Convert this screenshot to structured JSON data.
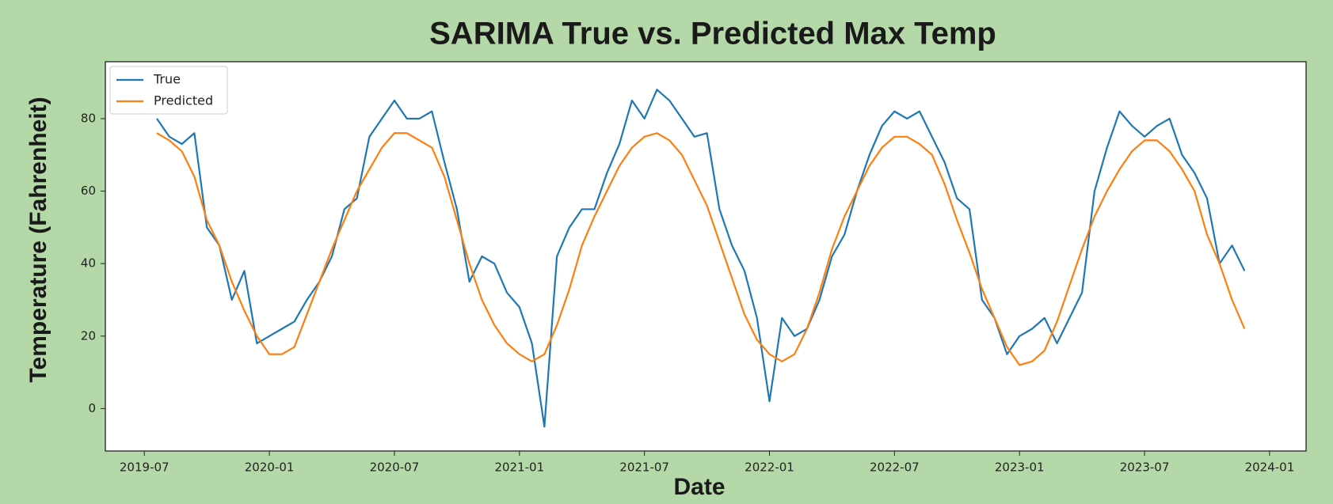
{
  "chart_data": {
    "type": "line",
    "title": "SARIMA True vs. Predicted Max Temp",
    "x_label": "Date",
    "y_label": "Temperature (Fahrenheit)",
    "x": [
      2019.55,
      2019.6,
      2019.65,
      2019.7,
      2019.75,
      2019.8,
      2019.85,
      2019.9,
      2019.95,
      2020.0,
      2020.05,
      2020.1,
      2020.15,
      2020.2,
      2020.25,
      2020.3,
      2020.35,
      2020.4,
      2020.45,
      2020.5,
      2020.55,
      2020.6,
      2020.65,
      2020.7,
      2020.75,
      2020.8,
      2020.85,
      2020.9,
      2020.95,
      2021.0,
      2021.05,
      2021.1,
      2021.15,
      2021.2,
      2021.25,
      2021.3,
      2021.35,
      2021.4,
      2021.45,
      2021.5,
      2021.55,
      2021.6,
      2021.65,
      2021.7,
      2021.75,
      2021.8,
      2021.85,
      2021.9,
      2021.95,
      2022.0,
      2022.05,
      2022.1,
      2022.15,
      2022.2,
      2022.25,
      2022.3,
      2022.35,
      2022.4,
      2022.45,
      2022.5,
      2022.55,
      2022.6,
      2022.65,
      2022.7,
      2022.75,
      2022.8,
      2022.85,
      2022.9,
      2022.95,
      2023.0,
      2023.05,
      2023.1,
      2023.15,
      2023.2,
      2023.25,
      2023.3,
      2023.35,
      2023.4,
      2023.45,
      2023.5,
      2023.55,
      2023.6,
      2023.65,
      2023.7,
      2023.75,
      2023.8,
      2023.85,
      2023.9
    ],
    "series": [
      {
        "name": "True",
        "color": "#1f77b4",
        "values": [
          80,
          75,
          73,
          76,
          50,
          45,
          30,
          38,
          18,
          20,
          22,
          24,
          30,
          35,
          42,
          55,
          58,
          75,
          80,
          85,
          80,
          80,
          82,
          68,
          55,
          35,
          42,
          40,
          32,
          28,
          18,
          -5,
          42,
          50,
          55,
          55,
          65,
          73,
          85,
          80,
          88,
          85,
          80,
          75,
          76,
          55,
          45,
          38,
          25,
          2,
          25,
          20,
          22,
          30,
          42,
          48,
          60,
          70,
          78,
          82,
          80,
          82,
          75,
          68,
          58,
          55,
          30,
          25,
          15,
          20,
          22,
          25,
          18,
          25,
          32,
          60,
          72,
          82,
          78,
          75,
          78,
          80,
          70,
          65,
          58,
          40,
          45,
          38
        ]
      },
      {
        "name": "Predicted",
        "color": "#ff7f0e",
        "values": [
          76,
          74,
          71,
          64,
          52,
          45,
          35,
          27,
          20,
          15,
          15,
          17,
          26,
          35,
          44,
          52,
          60,
          66,
          72,
          76,
          76,
          74,
          72,
          64,
          52,
          40,
          30,
          23,
          18,
          15,
          13,
          15,
          23,
          33,
          45,
          53,
          60,
          67,
          72,
          75,
          76,
          74,
          70,
          63,
          56,
          46,
          36,
          26,
          19,
          15,
          13,
          15,
          22,
          32,
          44,
          53,
          60,
          67,
          72,
          75,
          75,
          73,
          70,
          62,
          52,
          43,
          33,
          25,
          17,
          12,
          13,
          16,
          24,
          34,
          44,
          53,
          60,
          66,
          71,
          74,
          74,
          71,
          66,
          60,
          48,
          40,
          30,
          22
        ]
      }
    ],
    "xlim": [
      2019.344,
      2024.146
    ],
    "ylim": [
      -11.7,
      95.7
    ],
    "xticks": [
      {
        "value": 2019.5,
        "label": "2019-07"
      },
      {
        "value": 2020.0,
        "label": "2020-01"
      },
      {
        "value": 2020.5,
        "label": "2020-07"
      },
      {
        "value": 2021.0,
        "label": "2021-01"
      },
      {
        "value": 2021.5,
        "label": "2021-07"
      },
      {
        "value": 2022.0,
        "label": "2022-01"
      },
      {
        "value": 2022.5,
        "label": "2022-07"
      },
      {
        "value": 2023.0,
        "label": "2023-01"
      },
      {
        "value": 2023.5,
        "label": "2023-07"
      },
      {
        "value": 2024.0,
        "label": "2024-01"
      }
    ],
    "yticks": [
      0,
      20,
      40,
      60,
      80
    ],
    "grid": false,
    "legend": "upper left"
  }
}
